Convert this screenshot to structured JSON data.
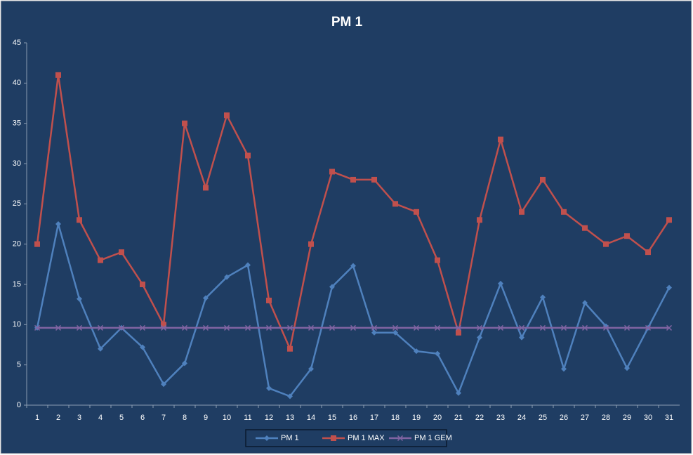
{
  "chart_data": {
    "type": "line",
    "title": "PM 1",
    "categories": [
      "1",
      "2",
      "3",
      "4",
      "5",
      "6",
      "7",
      "8",
      "9",
      "10",
      "11",
      "12",
      "13",
      "14",
      "15",
      "16",
      "17",
      "18",
      "19",
      "20",
      "21",
      "22",
      "23",
      "24",
      "25",
      "26",
      "27",
      "28",
      "29",
      "30",
      "31"
    ],
    "series": [
      {
        "name": "PM 1",
        "color": "#4f81bd",
        "marker": "diamond",
        "values": [
          9.6,
          22.5,
          13.2,
          7.0,
          9.6,
          7.2,
          2.6,
          5.2,
          13.3,
          15.9,
          17.4,
          2.1,
          1.1,
          4.5,
          14.7,
          17.3,
          9.0,
          9.0,
          6.7,
          6.4,
          1.5,
          8.4,
          15.1,
          8.4,
          13.4,
          4.5,
          12.7,
          9.8,
          4.6,
          9.6,
          14.6
        ]
      },
      {
        "name": "PM 1 MAX",
        "color": "#c0504d",
        "marker": "square",
        "values": [
          20,
          41,
          23,
          18,
          19,
          15,
          10,
          35,
          27,
          36,
          31,
          13,
          7,
          20,
          29,
          28,
          28,
          25,
          24,
          18,
          9,
          23,
          33,
          24,
          28,
          24,
          22,
          20,
          21,
          19,
          23
        ]
      },
      {
        "name": "PM 1 GEM",
        "color": "#8064a2",
        "marker": "x",
        "values": [
          9.6,
          9.6,
          9.6,
          9.6,
          9.6,
          9.6,
          9.6,
          9.6,
          9.6,
          9.6,
          9.6,
          9.6,
          9.6,
          9.6,
          9.6,
          9.6,
          9.6,
          9.6,
          9.6,
          9.6,
          9.6,
          9.6,
          9.6,
          9.6,
          9.6,
          9.6,
          9.6,
          9.6,
          9.6,
          9.6,
          9.6
        ]
      }
    ],
    "ylim": [
      0,
      45
    ],
    "yticks": [
      0,
      5,
      10,
      15,
      20,
      25,
      30,
      35,
      40,
      45
    ],
    "grid": false,
    "legend": "bottom"
  }
}
